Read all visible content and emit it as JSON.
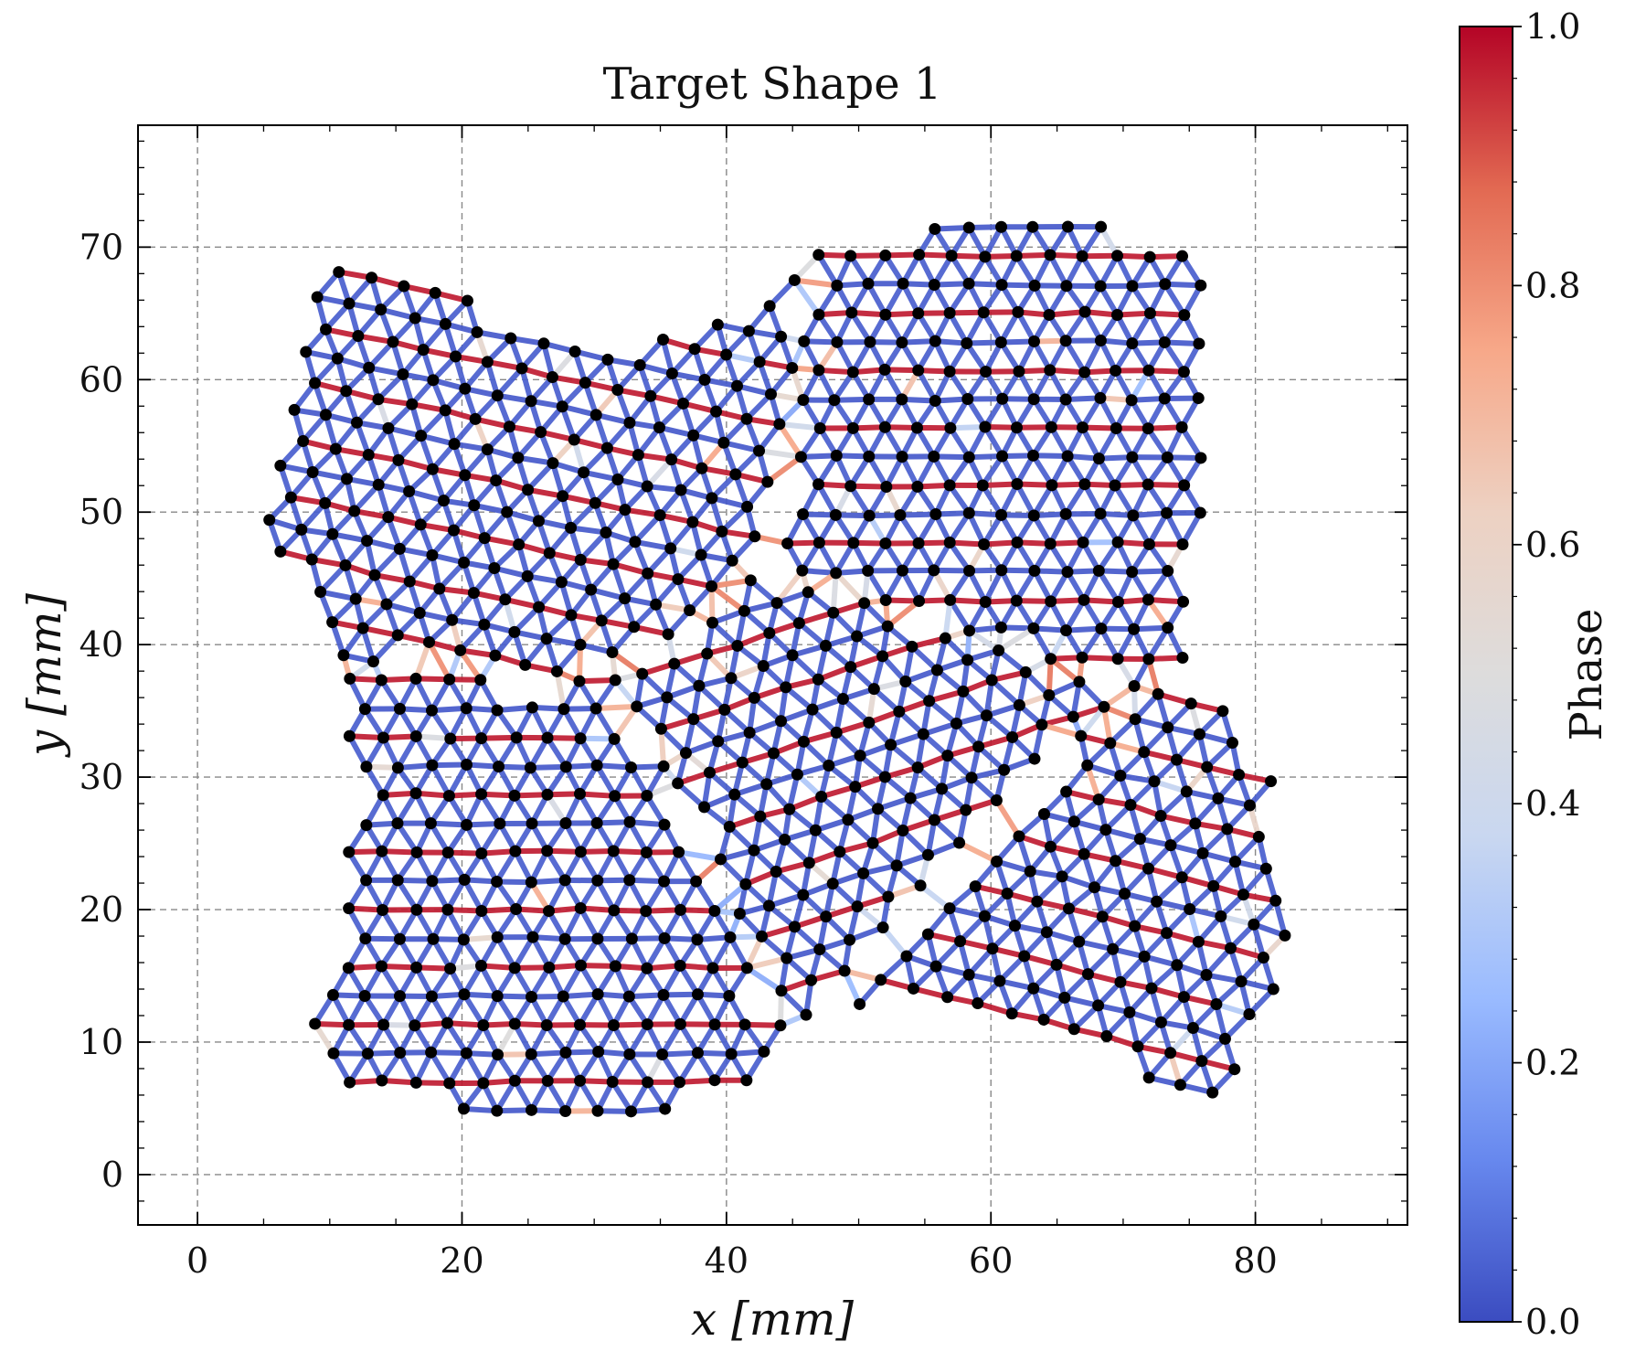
{
  "chart_data": {
    "type": "scatter",
    "title": "Target Shape 1",
    "xlabel": "x [mm]",
    "ylabel": "y [mm]",
    "xlim": [
      -4.5,
      91.5
    ],
    "ylim": [
      -3.8,
      79.2
    ],
    "xticks": [
      0,
      20,
      40,
      60,
      80
    ],
    "yticks": [
      0,
      10,
      20,
      30,
      40,
      50,
      60,
      70
    ],
    "grid": true,
    "colorbar": {
      "label": "Phase",
      "range": [
        0.0,
        1.0
      ],
      "ticks": [
        "0.0",
        "0.2",
        "0.4",
        "0.6",
        "0.8",
        "1.0"
      ],
      "colormap": [
        "#3b4cc0",
        "#6788ee",
        "#9abbff",
        "#c9d7f0",
        "#dddcdc",
        "#edd1c2",
        "#f7a889",
        "#e26952",
        "#b40426"
      ]
    },
    "series": [
      {
        "mesh": "triangular lattice of nodes (black dots) joined by edges coloured by phase",
        "outline": [
          [
            9.5,
            69
          ],
          [
            14,
            69
          ],
          [
            20,
            67.5
          ],
          [
            23,
            65
          ],
          [
            29,
            63.5
          ],
          [
            35,
            63
          ],
          [
            40,
            64.5
          ],
          [
            45,
            69
          ],
          [
            50,
            70.5
          ],
          [
            55,
            71.5
          ],
          [
            60,
            71.5
          ],
          [
            64,
            71.8
          ],
          [
            69,
            71.5
          ],
          [
            74,
            70.8
          ],
          [
            76.5,
            69.5
          ],
          [
            78,
            67
          ],
          [
            76,
            65
          ],
          [
            76,
            60
          ],
          [
            76,
            55
          ],
          [
            76,
            50
          ],
          [
            75.5,
            45
          ],
          [
            75.5,
            40
          ],
          [
            76,
            37
          ],
          [
            79,
            36
          ],
          [
            79.5,
            32
          ],
          [
            81,
            31.5
          ],
          [
            82,
            27
          ],
          [
            82.5,
            22.5
          ],
          [
            82.5,
            18
          ],
          [
            81.5,
            13.5
          ],
          [
            80,
            9.5
          ],
          [
            78,
            6
          ],
          [
            73.5,
            6
          ],
          [
            70,
            8
          ],
          [
            66,
            10
          ],
          [
            62,
            11.5
          ],
          [
            57,
            12
          ],
          [
            51,
            12.5
          ],
          [
            47.5,
            10.5
          ],
          [
            45,
            9
          ],
          [
            42,
            6.5
          ],
          [
            37.5,
            5
          ],
          [
            32,
            4
          ],
          [
            26.5,
            4
          ],
          [
            21.5,
            4.5
          ],
          [
            16.5,
            5
          ],
          [
            12,
            6.5
          ],
          [
            8,
            9
          ],
          [
            8.5,
            12
          ],
          [
            10,
            16
          ],
          [
            11,
            20
          ],
          [
            11,
            24.5
          ],
          [
            12,
            28
          ],
          [
            11.5,
            33
          ],
          [
            10.5,
            36
          ],
          [
            9,
            39.5
          ],
          [
            7.5,
            43.5
          ],
          [
            5.5,
            48
          ],
          [
            5,
            52.5
          ],
          [
            6,
            57
          ],
          [
            7,
            61.5
          ],
          [
            8,
            65
          ],
          [
            9.5,
            69
          ]
        ],
        "domains": [
          {
            "name": "upper-left",
            "band_angle_deg": -12,
            "center": [
              26,
              56
            ]
          },
          {
            "name": "upper-right",
            "band_angle_deg": 0,
            "center": [
              62,
              52
            ]
          },
          {
            "name": "middle",
            "band_angle_deg": 18,
            "center": [
              52,
              30
            ]
          },
          {
            "name": "lower-left",
            "band_angle_deg": 0,
            "center": [
              24,
              20
            ]
          },
          {
            "name": "lower-right",
            "band_angle_deg": -14,
            "center": [
              66,
              20
            ]
          }
        ],
        "lattice_spacing_mm": 2.5
      }
    ]
  }
}
